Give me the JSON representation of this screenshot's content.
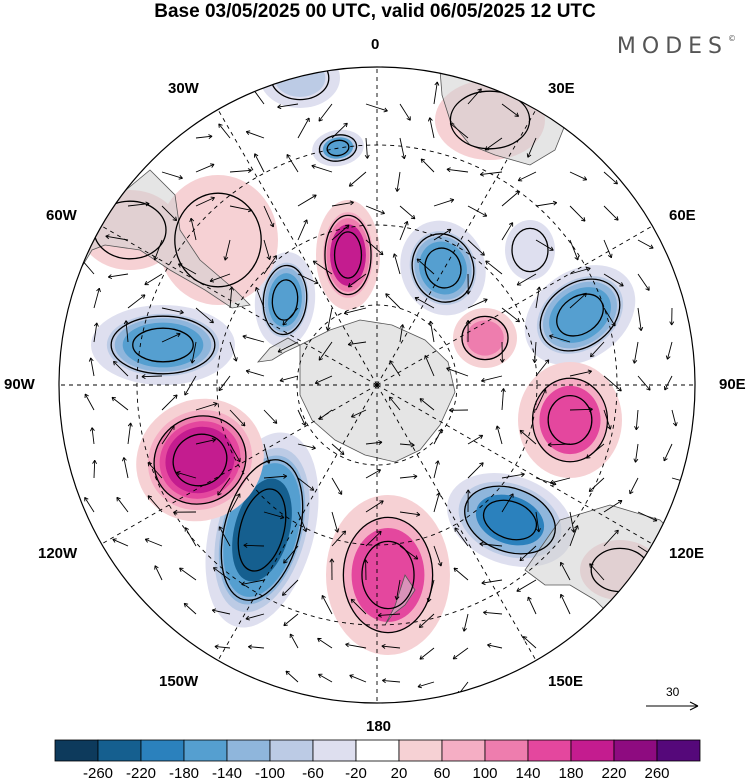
{
  "title": "Base 03/05/2025 00 UTC, valid 06/05/2025 12 UTC",
  "brand": "MODES",
  "brand_mark": "©",
  "longitude_labels": {
    "lon_0": "0",
    "lon_30e": "30E",
    "lon_60e": "60E",
    "lon_90e": "90E",
    "lon_120e": "120E",
    "lon_150e": "150E",
    "lon_180": "180",
    "lon_150w": "150W",
    "lon_120w": "120W",
    "lon_90w": "90W",
    "lon_60w": "60W",
    "lon_30w": "30W"
  },
  "reference_vector_label": "30",
  "colorbar": {
    "labels": [
      "-260",
      "-220",
      "-180",
      "-140",
      "-100",
      "-60",
      "-20",
      "20",
      "60",
      "100",
      "140",
      "180",
      "220",
      "260"
    ],
    "colors": [
      "#0d3a5c",
      "#155f8f",
      "#2b81bd",
      "#559fd0",
      "#8fb6dc",
      "#bccbe5",
      "#dedfef",
      "#ffffff",
      "#f6d1d4",
      "#f5aec4",
      "#ee7dae",
      "#e4479e",
      "#c41c8f",
      "#8e0b80",
      "#55087a"
    ]
  },
  "anomaly_centers": [
    {
      "id": "c1",
      "value": -150
    },
    {
      "id": "c2",
      "value": -90
    },
    {
      "id": "c3",
      "value": -170
    },
    {
      "id": "c4",
      "value": 180
    },
    {
      "id": "c5",
      "value": -160
    },
    {
      "id": "c6",
      "value": 120
    },
    {
      "id": "c7",
      "value": -170
    },
    {
      "id": "c8",
      "value": 150
    },
    {
      "id": "c9",
      "value": -200
    },
    {
      "id": "c10",
      "value": 140
    },
    {
      "id": "c11",
      "value": -240
    },
    {
      "id": "c12",
      "value": 200
    },
    {
      "id": "c13",
      "value": -160
    },
    {
      "id": "c14",
      "value": 50
    },
    {
      "id": "c15",
      "value": 40
    },
    {
      "id": "c16",
      "value": -40
    },
    {
      "id": "c17",
      "value": 40
    },
    {
      "id": "c18",
      "value": 50
    }
  ]
}
